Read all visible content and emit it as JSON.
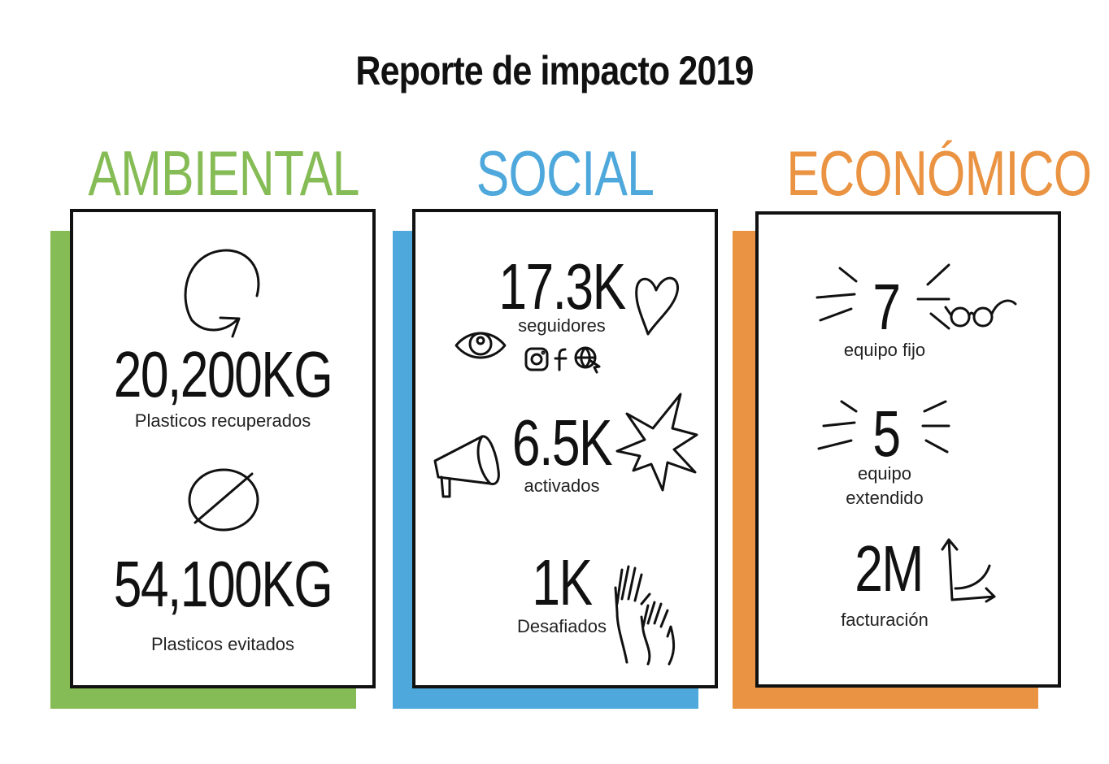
{
  "title": "Reporte de impacto 2019",
  "colors": {
    "ambiental": "#86bc55",
    "social": "#4ea8dc",
    "economico": "#ea9342"
  },
  "ambiental": {
    "heading": "AMBIENTAL",
    "stats": [
      {
        "value": "20,200KG",
        "label": "Plasticos recuperados",
        "icon": "recycle-arrow-icon"
      },
      {
        "value": "54,100KG",
        "label": "Plasticos evitados",
        "icon": "prohibited-icon"
      }
    ]
  },
  "social": {
    "heading": "SOCIAL",
    "stats": [
      {
        "value": "17.3K",
        "label": "seguidores",
        "icons": [
          "heart-icon",
          "eye-icon",
          "instagram-icon",
          "facebook-icon",
          "web-icon"
        ]
      },
      {
        "value": "6.5K",
        "label": "activados",
        "icons": [
          "megaphone-icon",
          "burst-icon"
        ]
      },
      {
        "value": "1K",
        "label": "Desafiados",
        "icon": "raised-hands-icon"
      }
    ]
  },
  "economico": {
    "heading": "ECONÓMICO",
    "stats": [
      {
        "value": "7",
        "label": "equipo fijo",
        "icon": "glasses-icon"
      },
      {
        "value": "5",
        "label_line1": "equipo",
        "label_line2": "extendido"
      },
      {
        "value": "2M",
        "label": "facturación",
        "icon": "growth-chart-icon"
      }
    ]
  }
}
